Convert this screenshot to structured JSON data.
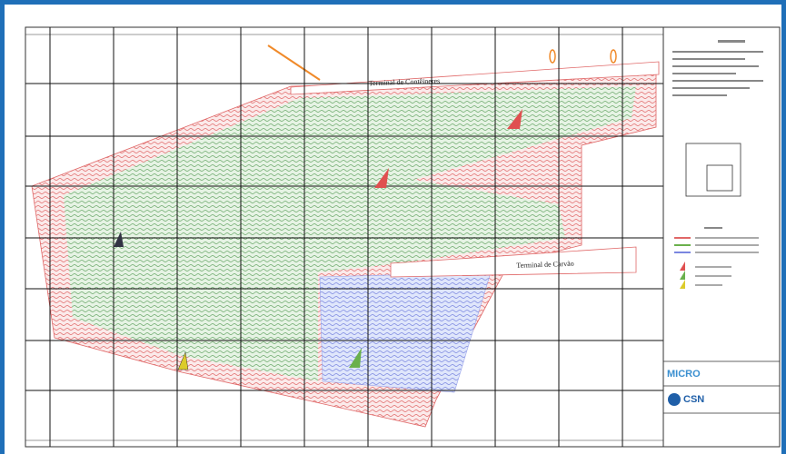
{
  "labels": {
    "terminal_top": "Terminal de Contêineres",
    "terminal_bottom": "Terminal de Carvão"
  },
  "logos": {
    "micro": "MICRO",
    "csn": "CSN"
  }
}
